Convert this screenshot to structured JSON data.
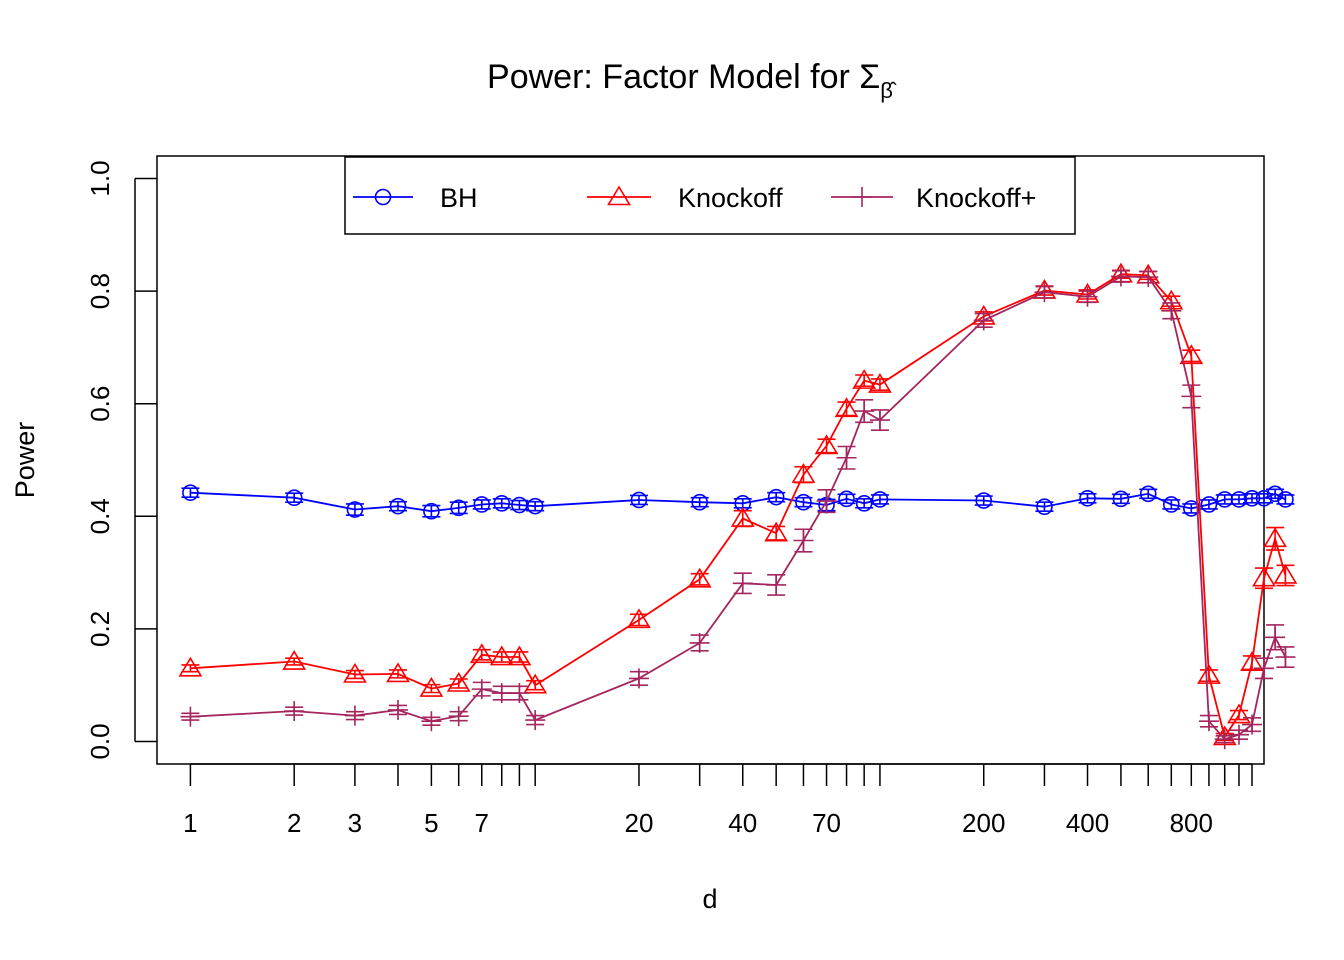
{
  "chart_data": {
    "type": "line",
    "title": "Power: Factor Model for Σ",
    "title_sub": "β̂",
    "xlabel": "d",
    "ylabel": "Power",
    "x_scale": "log",
    "xlim": [
      0.8,
      1300
    ],
    "ylim": [
      -0.04,
      1.04
    ],
    "x_ticks": [
      1,
      2,
      3,
      4,
      5,
      6,
      7,
      8,
      9,
      10,
      20,
      30,
      40,
      50,
      60,
      70,
      80,
      90,
      100,
      200,
      300,
      400,
      500,
      600,
      700,
      800,
      900,
      1000,
      1100,
      1200
    ],
    "x_tick_labels": [
      "1",
      "2",
      "3",
      "",
      "5",
      "",
      "7",
      "",
      "",
      "",
      "20",
      "",
      "40",
      "",
      "",
      "70",
      "",
      "",
      "",
      "200",
      "",
      "400",
      "",
      "",
      "",
      "800",
      "",
      "",
      "",
      ""
    ],
    "y_ticks": [
      0.0,
      0.2,
      0.4,
      0.6,
      0.8,
      1.0
    ],
    "y_tick_labels": [
      "0.0",
      "0.2",
      "0.4",
      "0.6",
      "0.8",
      "1.0"
    ],
    "grid": false,
    "legend": {
      "position": "top",
      "entries": [
        "BH",
        "Knockoff",
        "Knockoff+"
      ]
    },
    "x": [
      1,
      2,
      3,
      4,
      5,
      6,
      7,
      8,
      9,
      10,
      20,
      30,
      40,
      50,
      60,
      70,
      80,
      90,
      100,
      200,
      300,
      400,
      500,
      600,
      700,
      800,
      900,
      1000,
      1100,
      1200,
      1300,
      1400,
      1500,
      1600,
      1700
    ],
    "series": [
      {
        "name": "BH",
        "color": "#0000ff",
        "marker": "circle",
        "values": [
          0.442,
          0.433,
          0.412,
          0.418,
          0.409,
          0.415,
          0.421,
          0.423,
          0.42,
          0.418,
          0.429,
          0.425,
          0.423,
          0.434,
          0.425,
          0.42,
          0.431,
          0.423,
          0.43,
          0.428,
          0.417,
          0.432,
          0.431,
          0.44,
          0.421,
          0.414,
          0.421,
          0.43,
          0.43,
          0.432,
          0.432,
          0.44,
          0.43,
          null,
          null
        ],
        "errors": [
          0.008,
          0.008,
          0.01,
          0.008,
          0.01,
          0.01,
          0.008,
          0.008,
          0.008,
          0.008,
          0.008,
          0.008,
          0.008,
          0.008,
          0.008,
          0.01,
          0.008,
          0.008,
          0.008,
          0.008,
          0.008,
          0.008,
          0.008,
          0.008,
          0.008,
          0.008,
          0.008,
          0.008,
          0.008,
          0.008,
          0.008,
          0.008,
          0.008,
          null,
          null
        ]
      },
      {
        "name": "Knockoff",
        "color": "#ff0000",
        "marker": "triangle",
        "values": [
          0.13,
          0.142,
          0.119,
          0.12,
          0.094,
          0.103,
          0.154,
          0.15,
          0.15,
          0.1,
          0.216,
          0.288,
          0.396,
          0.37,
          0.474,
          0.525,
          0.591,
          0.641,
          0.634,
          0.755,
          0.801,
          0.794,
          0.83,
          0.828,
          0.782,
          0.685,
          0.117,
          0.008,
          0.047,
          0.14,
          0.29,
          0.36,
          0.295,
          null,
          null
        ],
        "errors": [
          0.006,
          0.006,
          0.007,
          0.007,
          0.007,
          0.008,
          0.009,
          0.009,
          0.009,
          0.008,
          0.01,
          0.01,
          0.014,
          0.012,
          0.014,
          0.012,
          0.012,
          0.01,
          0.01,
          0.008,
          0.008,
          0.008,
          0.007,
          0.007,
          0.009,
          0.01,
          0.01,
          0.006,
          0.008,
          0.012,
          0.018,
          0.02,
          0.018,
          null,
          null
        ]
      },
      {
        "name": "Knockoff+",
        "color": "#a4265e",
        "marker": "plus",
        "values": [
          0.044,
          0.054,
          0.046,
          0.056,
          0.036,
          0.045,
          0.093,
          0.086,
          0.086,
          0.038,
          0.112,
          0.175,
          0.281,
          0.278,
          0.357,
          0.427,
          0.504,
          0.587,
          0.571,
          0.748,
          0.798,
          0.79,
          0.826,
          0.825,
          0.765,
          0.613,
          0.036,
          0.004,
          0.012,
          0.03,
          0.13,
          0.185,
          0.15,
          null,
          null
        ],
        "errors": [
          0.006,
          0.007,
          0.007,
          0.008,
          0.007,
          0.008,
          0.012,
          0.012,
          0.012,
          0.008,
          0.012,
          0.014,
          0.018,
          0.018,
          0.02,
          0.02,
          0.02,
          0.02,
          0.018,
          0.012,
          0.01,
          0.01,
          0.01,
          0.01,
          0.014,
          0.02,
          0.01,
          0.006,
          0.008,
          0.012,
          0.018,
          0.022,
          0.018,
          null,
          null
        ]
      }
    ]
  }
}
